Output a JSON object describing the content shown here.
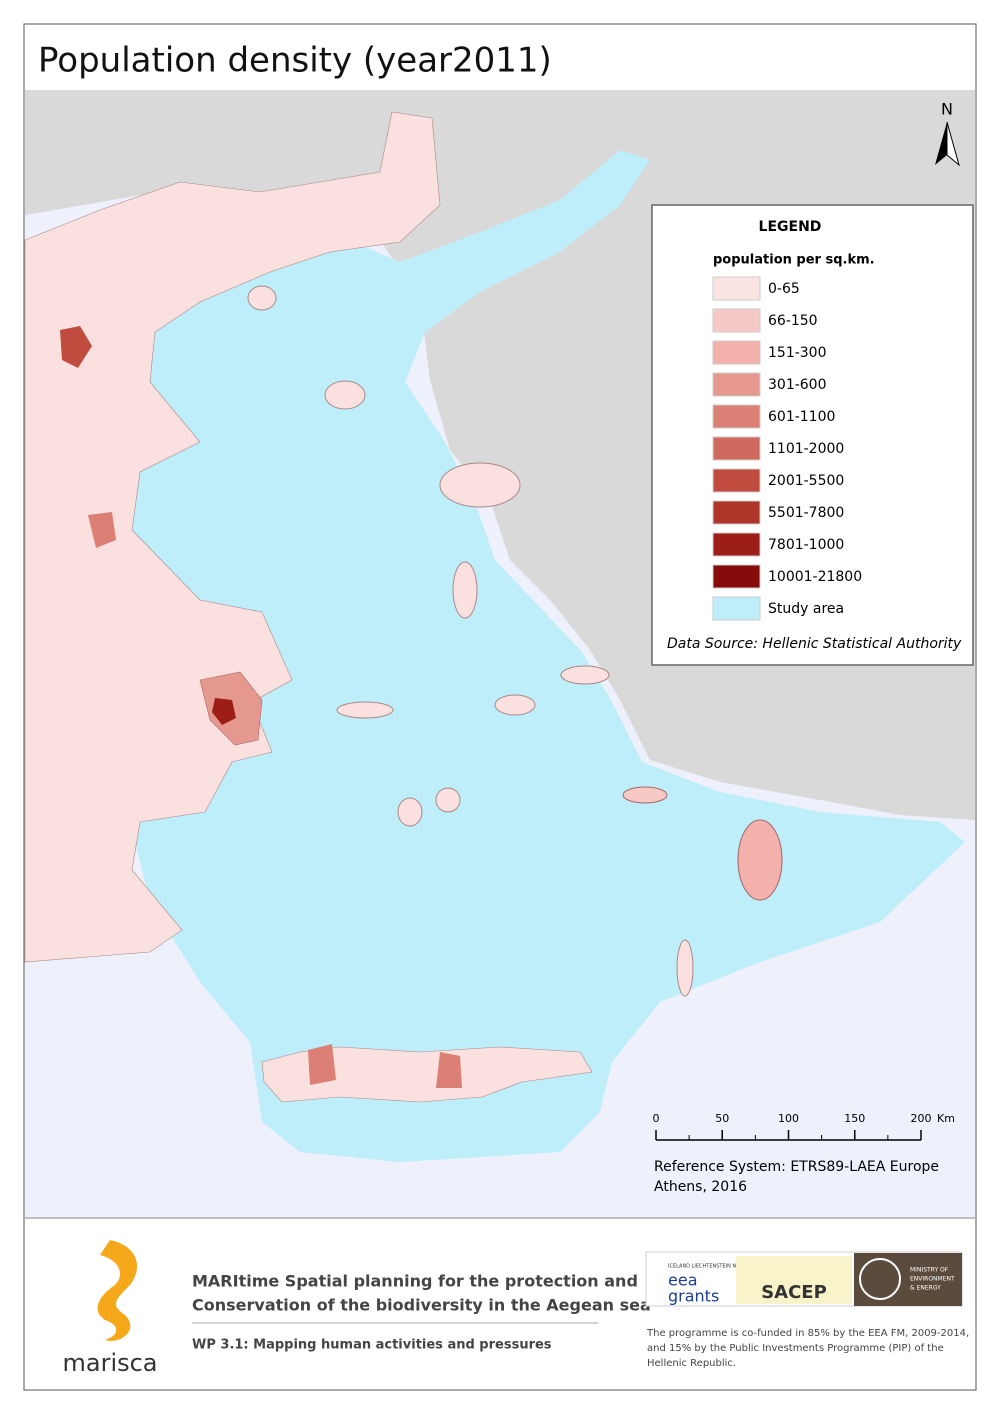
{
  "header": {
    "title": "Population density (year2011)"
  },
  "map": {
    "north_label": "N",
    "legend": {
      "title": "LEGEND",
      "subtitle": "population per sq.km.",
      "items": [
        {
          "label": "0-65",
          "color": "#fde4e4"
        },
        {
          "label": "66-150",
          "color": "#f7c9c6"
        },
        {
          "label": "151-300",
          "color": "#f2b1ab"
        },
        {
          "label": "301-600",
          "color": "#e5988e"
        },
        {
          "label": "601-1100",
          "color": "#dc7f74"
        },
        {
          "label": "1101-2000",
          "color": "#d06a5e"
        },
        {
          "label": "2001-5500",
          "color": "#bf4c3e"
        },
        {
          "label": "5501-7800",
          "color": "#ae3629"
        },
        {
          "label": "7801-1000",
          "color": "#9c1e17"
        },
        {
          "label": "10001-21800",
          "color": "#860c0c"
        },
        {
          "label": "Study area",
          "color": "#bdeefa"
        }
      ],
      "source": "Data Source: Hellenic Statistical Authority"
    },
    "scale_bar": {
      "ticks": [
        0,
        50,
        100,
        150,
        200
      ],
      "unit": "Km"
    },
    "reference": [
      "Reference System: ETRS89-LAEA Europe",
      "Athens, 2016"
    ]
  },
  "footer": {
    "logo_text": "marisca",
    "project": [
      "MARItime Spatial planning for the protection and",
      "Conservation of the biodiversity in the Aegean sea"
    ],
    "wp": "WP 3.1: Mapping human activities and pressures",
    "logos": {
      "eea_small": "ICELAND LIECHTENSTEIN NORWAY",
      "eea": [
        "eea",
        "grants"
      ],
      "sacep": "SACEP",
      "ministry": [
        "MINISTRY OF",
        "ENVIRONMENT",
        "& ENERGY"
      ]
    },
    "cofunding": [
      "The programme is co-funded in 85% by the EEA FM, 2009-2014,",
      "and 15% by the Public Investments Programme (PIP) of the",
      "Hellenic Republic."
    ]
  }
}
